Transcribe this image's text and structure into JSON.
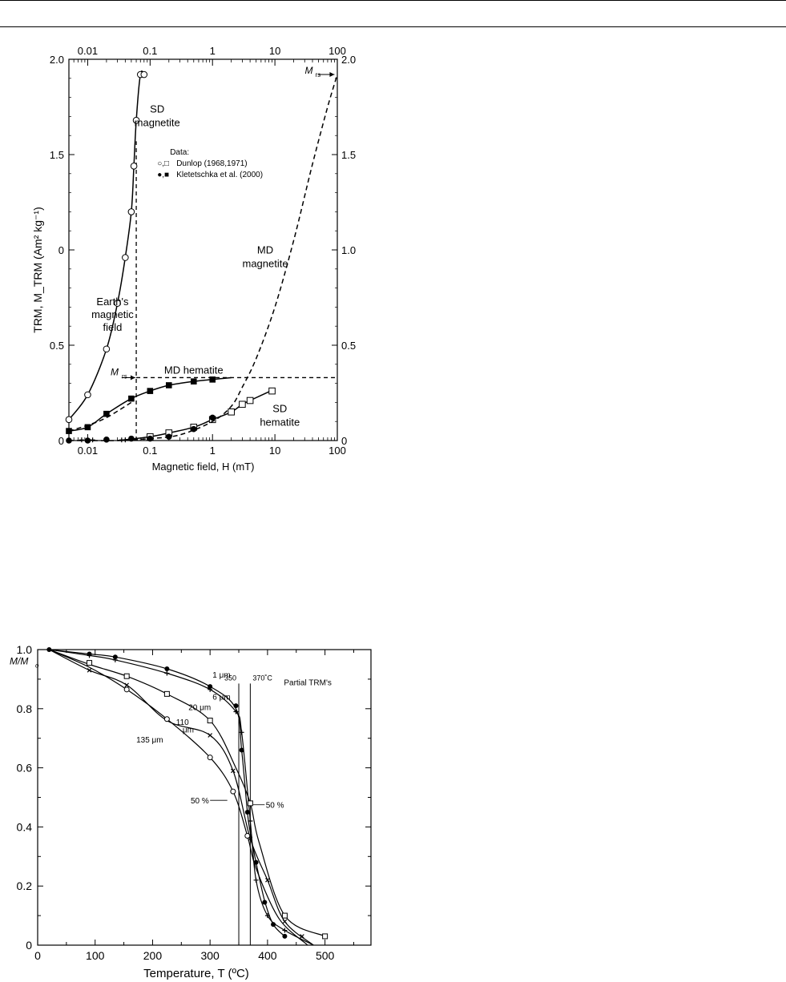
{
  "chart_data": [
    {
      "type": "line",
      "xscale": "log",
      "xlim": [
        0.005,
        100
      ],
      "ylim": [
        0,
        2.0
      ],
      "xlabel": "Magnetic field, H (mT)",
      "ylabel": "TRM, M_TRM (Am² kg⁻¹)",
      "x_ticks": [
        "0.01",
        "0.1",
        "1",
        "10",
        "100"
      ],
      "y_ticks_left": [
        "0",
        "0.5",
        "1.5",
        "2.0"
      ],
      "y_tick_zero_mid": "0",
      "y_ticks_right": [
        "0",
        "0.5",
        "1.0",
        "1.5",
        "2.0"
      ],
      "grid": false,
      "legend": {
        "title": "Data:",
        "entries": [
          {
            "symbols": "○,□",
            "text": "Dunlop (1968,1971)"
          },
          {
            "symbols": "●,■",
            "text": "Kletetschka et al. (2000)"
          }
        ]
      },
      "annotations": {
        "sd_magnetite": [
          "SD",
          "magnetite"
        ],
        "md_magnetite": [
          "MD",
          "magnetite"
        ],
        "md_hematite": "MD hematite",
        "sd_hematite": [
          "SD",
          "hematite"
        ],
        "earth_field": [
          "Earth's",
          "magnetic",
          "field"
        ],
        "mrs": "M",
        "mrs_sub": "rs",
        "earth_field_value": 0.06,
        "mrs_md_hematite": 0.33,
        "mrs_md_magnetite": 1.92
      },
      "series": [
        {
          "name": "SD magnetite",
          "style": "solid",
          "marker": "open-circle",
          "x": [
            0.005,
            0.01,
            0.02,
            0.03,
            0.04,
            0.05,
            0.055,
            0.06,
            0.07,
            0.08
          ],
          "y": [
            0.11,
            0.24,
            0.48,
            0.72,
            0.96,
            1.2,
            1.44,
            1.68,
            1.92,
            1.92
          ],
          "points_x": [
            0.005,
            0.01,
            0.02,
            0.03,
            0.04,
            0.05,
            0.055,
            0.06,
            0.07,
            0.08
          ],
          "points_y": [
            0.11,
            0.24,
            0.48,
            0.72,
            0.96,
            1.2,
            1.44,
            1.68,
            1.92,
            1.92
          ]
        },
        {
          "name": "MD hematite",
          "style": "solid",
          "marker": "filled-square",
          "x": [
            0.005,
            0.01,
            0.02,
            0.05,
            0.1,
            0.2,
            0.5,
            1,
            2
          ],
          "y": [
            0.05,
            0.07,
            0.14,
            0.22,
            0.26,
            0.29,
            0.31,
            0.32,
            0.33
          ],
          "points_x": [
            0.005,
            0.01,
            0.02,
            0.05,
            0.1,
            0.2,
            0.5,
            1
          ],
          "points_y": [
            0.05,
            0.07,
            0.14,
            0.22,
            0.26,
            0.29,
            0.31,
            0.32
          ]
        },
        {
          "name": "SD hematite",
          "style": "solid",
          "marker": "open-square",
          "x": [
            0.03,
            0.1,
            0.2,
            0.5,
            1,
            2,
            3,
            4,
            10
          ],
          "y": [
            0.0,
            0.02,
            0.04,
            0.07,
            0.11,
            0.15,
            0.19,
            0.21,
            0.27
          ],
          "points_x": [
            0.1,
            0.2,
            0.5,
            1,
            2,
            3,
            4,
            9
          ],
          "points_y": [
            0.02,
            0.04,
            0.07,
            0.11,
            0.15,
            0.19,
            0.21,
            0.26
          ]
        },
        {
          "name": "SD hematite (filled)",
          "style": "none",
          "marker": "filled-circle",
          "points_x": [
            0.005,
            0.01,
            0.02,
            0.05,
            0.1,
            0.2,
            0.5,
            1
          ],
          "points_y": [
            0.0,
            0.0,
            0.005,
            0.01,
            0.01,
            0.02,
            0.06,
            0.12
          ]
        },
        {
          "name": "MD magnetite",
          "style": "dashed",
          "marker": "none",
          "x": [
            0.005,
            0.01,
            0.03,
            0.1,
            0.3,
            1,
            2,
            3,
            5,
            10,
            20,
            40,
            70,
            100
          ],
          "y": [
            0.0,
            0.0,
            0.0,
            0.01,
            0.03,
            0.1,
            0.18,
            0.28,
            0.43,
            0.7,
            1.05,
            1.45,
            1.75,
            1.92
          ]
        },
        {
          "name": "dashed trend (MD hematite)",
          "style": "dashed",
          "marker": "none",
          "x": [
            0.005,
            0.01,
            0.02,
            0.05
          ],
          "y": [
            0.05,
            0.08,
            0.12,
            0.2
          ]
        }
      ]
    },
    {
      "type": "line",
      "xlim": [
        0,
        580
      ],
      "ylim": [
        0,
        1.0
      ],
      "xlabel": "Temperature, T (ºC)",
      "ylabel": "M/M",
      "ylabel_sub": "o",
      "x_ticks": [
        "0",
        "100",
        "200",
        "300",
        "400",
        "500"
      ],
      "y_ticks": [
        "0",
        "0.2",
        "0.4",
        "0.6",
        "0.8",
        "1.0"
      ],
      "grid": false,
      "title_annotation": "Partial TRM's",
      "verticals": [
        {
          "x": 350,
          "label": "350"
        },
        {
          "x": 370,
          "label": "370˚C"
        }
      ],
      "labels_50": [
        "50 %",
        "50 %"
      ],
      "series": [
        {
          "name": "1 μm",
          "marker": "filled-circle",
          "x": [
            20,
            90,
            135,
            225,
            300,
            345,
            355,
            365,
            370,
            380,
            395,
            410,
            430
          ],
          "y": [
            1.0,
            0.985,
            0.975,
            0.935,
            0.875,
            0.8,
            0.66,
            0.45,
            0.38,
            0.28,
            0.15,
            0.07,
            0.03
          ],
          "points_x": [
            20,
            90,
            135,
            225,
            300,
            345,
            355,
            365,
            380,
            395,
            410,
            430
          ],
          "points_y": [
            1.0,
            0.985,
            0.975,
            0.935,
            0.875,
            0.81,
            0.66,
            0.45,
            0.28,
            0.145,
            0.07,
            0.03
          ]
        },
        {
          "name": "6 μm",
          "marker": "plus",
          "x": [
            20,
            90,
            135,
            225,
            300,
            345,
            355,
            370,
            380,
            400,
            430,
            480
          ],
          "y": [
            1.0,
            0.98,
            0.965,
            0.92,
            0.865,
            0.79,
            0.72,
            0.42,
            0.22,
            0.1,
            0.05,
            0.0
          ],
          "points_x": [
            90,
            135,
            225,
            300,
            345,
            355,
            370,
            380,
            400,
            430
          ],
          "points_y": [
            0.98,
            0.965,
            0.92,
            0.865,
            0.79,
            0.72,
            0.42,
            0.22,
            0.1,
            0.05
          ]
        },
        {
          "name": "20 μm",
          "marker": "open-square",
          "x": [
            20,
            90,
            155,
            225,
            300,
            345,
            370,
            385,
            430,
            500
          ],
          "y": [
            1.0,
            0.95,
            0.91,
            0.85,
            0.76,
            0.6,
            0.48,
            0.35,
            0.1,
            0.03
          ],
          "points_x": [
            90,
            155,
            225,
            300,
            370,
            430,
            500
          ],
          "points_y": [
            0.955,
            0.91,
            0.85,
            0.76,
            0.48,
            0.1,
            0.03
          ]
        },
        {
          "name": "110 μm",
          "marker": "cross",
          "x": [
            20,
            90,
            155,
            225,
            300,
            340,
            370,
            400,
            430,
            480
          ],
          "y": [
            1.0,
            0.93,
            0.88,
            0.76,
            0.71,
            0.59,
            0.36,
            0.22,
            0.08,
            0.0
          ],
          "points_x": [
            90,
            155,
            300,
            340,
            370,
            400,
            430,
            460
          ],
          "points_y": [
            0.93,
            0.88,
            0.71,
            0.59,
            0.36,
            0.22,
            0.08,
            0.03
          ]
        },
        {
          "name": "135 μm",
          "marker": "open-circle",
          "x": [
            20,
            90,
            155,
            225,
            300,
            340,
            365,
            380,
            420,
            470
          ],
          "y": [
            1.0,
            0.94,
            0.865,
            0.765,
            0.635,
            0.52,
            0.37,
            0.26,
            0.09,
            0.0
          ],
          "points_x": [
            155,
            225,
            300,
            340,
            365
          ],
          "points_y": [
            0.865,
            0.765,
            0.635,
            0.52,
            0.37
          ]
        }
      ]
    }
  ]
}
